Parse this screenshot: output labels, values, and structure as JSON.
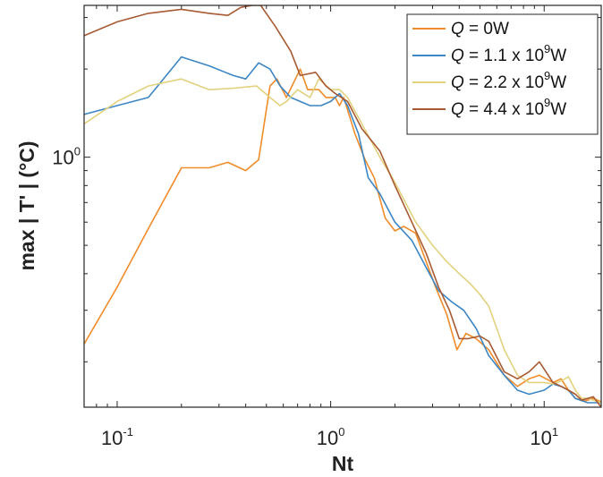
{
  "chart_data": {
    "type": "line",
    "xlabel": "Nt",
    "ylabel": "max | T' | (°C)",
    "x_scale": "log",
    "y_scale": "log",
    "xlim": [
      0.07,
      18.5
    ],
    "ylim": [
      0.14,
      3.3
    ],
    "grid": false,
    "legend_placement": "top-right",
    "x_ticks": [
      {
        "value": 0.1,
        "base": "10",
        "exp": "-1"
      },
      {
        "value": 1,
        "base": "10",
        "exp": "0"
      },
      {
        "value": 10,
        "base": "10",
        "exp": "1"
      }
    ],
    "y_ticks": [
      {
        "value": 1,
        "base": "10",
        "exp": "0"
      }
    ],
    "series": [
      {
        "name": "Q = 0W",
        "legend": {
          "q": "Q",
          "text": " = 0W",
          "exp": ""
        },
        "color": "#F08C2A",
        "points": [
          [
            0.07,
            0.23
          ],
          [
            0.1,
            0.36
          ],
          [
            0.14,
            0.57
          ],
          [
            0.2,
            0.92
          ],
          [
            0.27,
            0.92
          ],
          [
            0.33,
            0.96
          ],
          [
            0.4,
            0.9
          ],
          [
            0.46,
            0.98
          ],
          [
            0.52,
            1.75
          ],
          [
            0.56,
            1.85
          ],
          [
            0.62,
            1.6
          ],
          [
            0.72,
            2.0
          ],
          [
            0.78,
            1.7
          ],
          [
            0.88,
            1.7
          ],
          [
            0.95,
            1.6
          ],
          [
            1.05,
            1.6
          ],
          [
            1.1,
            1.5
          ],
          [
            1.15,
            1.6
          ],
          [
            1.2,
            1.45
          ],
          [
            1.3,
            1.2
          ],
          [
            1.45,
            0.98
          ],
          [
            1.6,
            0.85
          ],
          [
            1.8,
            0.62
          ],
          [
            2.0,
            0.56
          ],
          [
            2.2,
            0.58
          ],
          [
            2.5,
            0.55
          ],
          [
            2.8,
            0.44
          ],
          [
            3.1,
            0.36
          ],
          [
            3.5,
            0.29
          ],
          [
            3.9,
            0.22
          ],
          [
            4.3,
            0.25
          ],
          [
            4.8,
            0.24
          ],
          [
            5.5,
            0.22
          ],
          [
            6.5,
            0.18
          ],
          [
            7.5,
            0.165
          ],
          [
            8.5,
            0.175
          ],
          [
            9.5,
            0.18
          ],
          [
            11,
            0.17
          ],
          [
            12,
            0.175
          ],
          [
            13,
            0.16
          ],
          [
            14,
            0.15
          ],
          [
            15.5,
            0.147
          ],
          [
            17,
            0.15
          ],
          [
            18.5,
            0.146
          ]
        ]
      },
      {
        "name": "Q = 1.1 x 10^9W",
        "legend": {
          "q": "Q",
          "text": " = 1.1 x 10",
          "exp": "9",
          "tail": "W"
        },
        "color": "#3C86C4",
        "points": [
          [
            0.07,
            1.4
          ],
          [
            0.1,
            1.5
          ],
          [
            0.14,
            1.6
          ],
          [
            0.2,
            2.2
          ],
          [
            0.27,
            2.05
          ],
          [
            0.35,
            1.9
          ],
          [
            0.4,
            1.85
          ],
          [
            0.46,
            2.1
          ],
          [
            0.52,
            2.0
          ],
          [
            0.58,
            1.75
          ],
          [
            0.65,
            1.6
          ],
          [
            0.72,
            1.55
          ],
          [
            0.8,
            1.5
          ],
          [
            0.9,
            1.5
          ],
          [
            1.0,
            1.55
          ],
          [
            1.1,
            1.65
          ],
          [
            1.2,
            1.5
          ],
          [
            1.35,
            1.2
          ],
          [
            1.5,
            0.85
          ],
          [
            1.7,
            0.75
          ],
          [
            2.0,
            0.6
          ],
          [
            2.4,
            0.52
          ],
          [
            2.8,
            0.42
          ],
          [
            3.2,
            0.35
          ],
          [
            3.7,
            0.32
          ],
          [
            4.2,
            0.3
          ],
          [
            4.8,
            0.26
          ],
          [
            5.5,
            0.21
          ],
          [
            6.5,
            0.18
          ],
          [
            7.5,
            0.16
          ],
          [
            8.5,
            0.155
          ],
          [
            10,
            0.16
          ],
          [
            11,
            0.168
          ],
          [
            12,
            0.165
          ],
          [
            13,
            0.16
          ],
          [
            14,
            0.15
          ],
          [
            16,
            0.145
          ],
          [
            18.5,
            0.145
          ]
        ]
      },
      {
        "name": "Q = 2.2 x 10^9W",
        "legend": {
          "q": "Q",
          "text": " = 2.2 x 10",
          "exp": "9",
          "tail": "W"
        },
        "color": "#E2D27E",
        "points": [
          [
            0.07,
            1.3
          ],
          [
            0.1,
            1.55
          ],
          [
            0.14,
            1.75
          ],
          [
            0.2,
            1.85
          ],
          [
            0.27,
            1.7
          ],
          [
            0.35,
            1.72
          ],
          [
            0.45,
            1.75
          ],
          [
            0.52,
            1.6
          ],
          [
            0.58,
            1.5
          ],
          [
            0.62,
            1.55
          ],
          [
            0.7,
            1.7
          ],
          [
            0.8,
            1.6
          ],
          [
            0.88,
            1.85
          ],
          [
            1.0,
            1.7
          ],
          [
            1.1,
            1.7
          ],
          [
            1.2,
            1.6
          ],
          [
            1.4,
            1.3
          ],
          [
            1.7,
            1.0
          ],
          [
            2.0,
            0.82
          ],
          [
            2.5,
            0.6
          ],
          [
            3.0,
            0.5
          ],
          [
            3.5,
            0.44
          ],
          [
            4.0,
            0.4
          ],
          [
            4.5,
            0.37
          ],
          [
            5.0,
            0.34
          ],
          [
            5.5,
            0.31
          ],
          [
            6.0,
            0.26
          ],
          [
            6.5,
            0.22
          ],
          [
            7.5,
            0.18
          ],
          [
            8.5,
            0.17
          ],
          [
            10,
            0.17
          ],
          [
            11,
            0.168
          ],
          [
            12,
            0.172
          ],
          [
            13,
            0.178
          ],
          [
            14,
            0.16
          ],
          [
            15,
            0.15
          ],
          [
            16,
            0.15
          ],
          [
            18.5,
            0.145
          ]
        ]
      },
      {
        "name": "Q = 4.4 x 10^9W",
        "legend": {
          "q": "Q",
          "text": " = 4.4 x 10",
          "exp": "9",
          "tail": "W"
        },
        "color": "#A85A32",
        "points": [
          [
            0.07,
            2.6
          ],
          [
            0.1,
            2.9
          ],
          [
            0.14,
            3.1
          ],
          [
            0.2,
            3.2
          ],
          [
            0.27,
            3.1
          ],
          [
            0.33,
            3.05
          ],
          [
            0.38,
            3.25
          ],
          [
            0.43,
            3.3
          ],
          [
            0.47,
            3.3
          ],
          [
            0.55,
            2.8
          ],
          [
            0.65,
            2.3
          ],
          [
            0.72,
            1.9
          ],
          [
            0.85,
            1.95
          ],
          [
            0.95,
            1.75
          ],
          [
            1.05,
            1.65
          ],
          [
            1.2,
            1.55
          ],
          [
            1.4,
            1.25
          ],
          [
            1.7,
            1.05
          ],
          [
            2.0,
            0.8
          ],
          [
            2.4,
            0.6
          ],
          [
            2.8,
            0.47
          ],
          [
            3.2,
            0.36
          ],
          [
            3.6,
            0.3
          ],
          [
            4.0,
            0.24
          ],
          [
            4.4,
            0.24
          ],
          [
            5.0,
            0.245
          ],
          [
            5.5,
            0.235
          ],
          [
            6.5,
            0.185
          ],
          [
            7.5,
            0.175
          ],
          [
            8.5,
            0.185
          ],
          [
            9.5,
            0.2
          ],
          [
            11,
            0.17
          ],
          [
            12,
            0.165
          ],
          [
            13,
            0.16
          ],
          [
            14,
            0.155
          ],
          [
            15,
            0.148
          ],
          [
            16,
            0.15
          ],
          [
            17,
            0.152
          ],
          [
            18.5,
            0.14
          ]
        ]
      }
    ]
  }
}
